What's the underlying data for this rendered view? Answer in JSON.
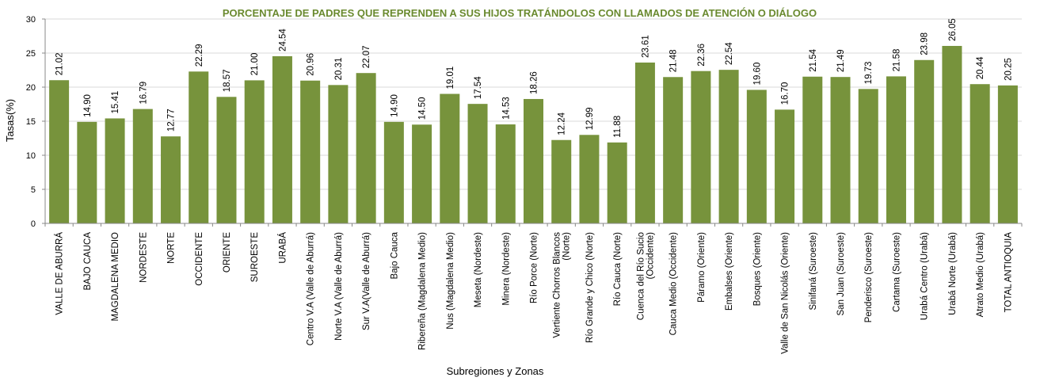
{
  "chart_data": {
    "type": "bar",
    "title": "PORCENTAJE DE PADRES QUE REPRENDEN A SUS HIJOS TRATÁNDOLOS CON LLAMADOS DE ATENCIÓN O DIÁLOGO",
    "xlabel": "Subregiones y Zonas",
    "ylabel": "Tasas(%)",
    "ylim": [
      0,
      30
    ],
    "yticks": [
      "0",
      "5",
      "10",
      "15",
      "20",
      "25",
      "30"
    ],
    "grid": true,
    "bar_color": "#77933c",
    "title_color": "#6a8a2f",
    "categories": [
      [
        "VALLE DE ABURRÁ"
      ],
      [
        "BAJO CAUCA"
      ],
      [
        "MAGDALENA MEDIO"
      ],
      [
        "NORDESTE"
      ],
      [
        "NORTE"
      ],
      [
        "OCCIDENTE"
      ],
      [
        "ORIENTE"
      ],
      [
        "SUROESTE"
      ],
      [
        "URABÁ"
      ],
      [
        "Centro V.A (Valle de Aburrá)"
      ],
      [
        "Norte V.A (Valle de Aburrá)"
      ],
      [
        "Sur V.A(Valle de Aburrá)"
      ],
      [
        "Bajo Cauca"
      ],
      [
        "Ribereña  (Magdalena Medio)"
      ],
      [
        "Nus  (Magdalena Medio)"
      ],
      [
        "Meseta  (Nordeste)"
      ],
      [
        "Minera  (Nordeste)"
      ],
      [
        "Río Porce   (Norte)"
      ],
      [
        "Vertiente Chorros Blancos",
        "(Norte)"
      ],
      [
        "Río Grande y Chico  (Norte)"
      ],
      [
        "Río Cauca  (Norte)"
      ],
      [
        "Cuenca del Río Sucio",
        "(Occidente)"
      ],
      [
        "Cauca Medio  (Occidente)"
      ],
      [
        "Páramo  (Oriente)"
      ],
      [
        "Embalses (Oriente)"
      ],
      [
        "Bosques  (Oriente)"
      ],
      [
        "Valle de San Nicolás (Oriente)"
      ],
      [
        "Sinifaná  (Suroeste)"
      ],
      [
        "San Juan  (Suroeste)"
      ],
      [
        "Penderisco  (Suroeste)"
      ],
      [
        "Cartama  (Suroeste)"
      ],
      [
        "Urabá Centro  (Urabá)"
      ],
      [
        "Urabá Norte  (Urabá)"
      ],
      [
        "Atrato Medio  (Urabá)"
      ],
      [
        "TOTAL ANTIOQUIA"
      ]
    ],
    "values": [
      21.02,
      14.9,
      15.41,
      16.79,
      12.77,
      22.29,
      18.57,
      21.0,
      24.54,
      20.96,
      20.31,
      22.07,
      14.9,
      14.5,
      19.01,
      17.54,
      14.53,
      18.26,
      12.24,
      12.99,
      11.88,
      23.61,
      21.48,
      22.36,
      22.54,
      19.6,
      16.7,
      21.54,
      21.49,
      19.73,
      21.58,
      23.98,
      26.05,
      20.44,
      20.25
    ],
    "value_labels": [
      "21.02",
      "14.90",
      "15.41",
      "16.79",
      "12.77",
      "22.29",
      "18.57",
      "21.00",
      "24.54",
      "20.96",
      "20.31",
      "22.07",
      "14.90",
      "14.50",
      "19.01",
      "17.54",
      "14.53",
      "18.26",
      "12.24",
      "12.99",
      "11.88",
      "23.61",
      "21.48",
      "22.36",
      "22.54",
      "19.60",
      "16.70",
      "21.54",
      "21.49",
      "19.73",
      "21.58",
      "23.98",
      "26.05",
      "20.44",
      "20.25"
    ]
  }
}
